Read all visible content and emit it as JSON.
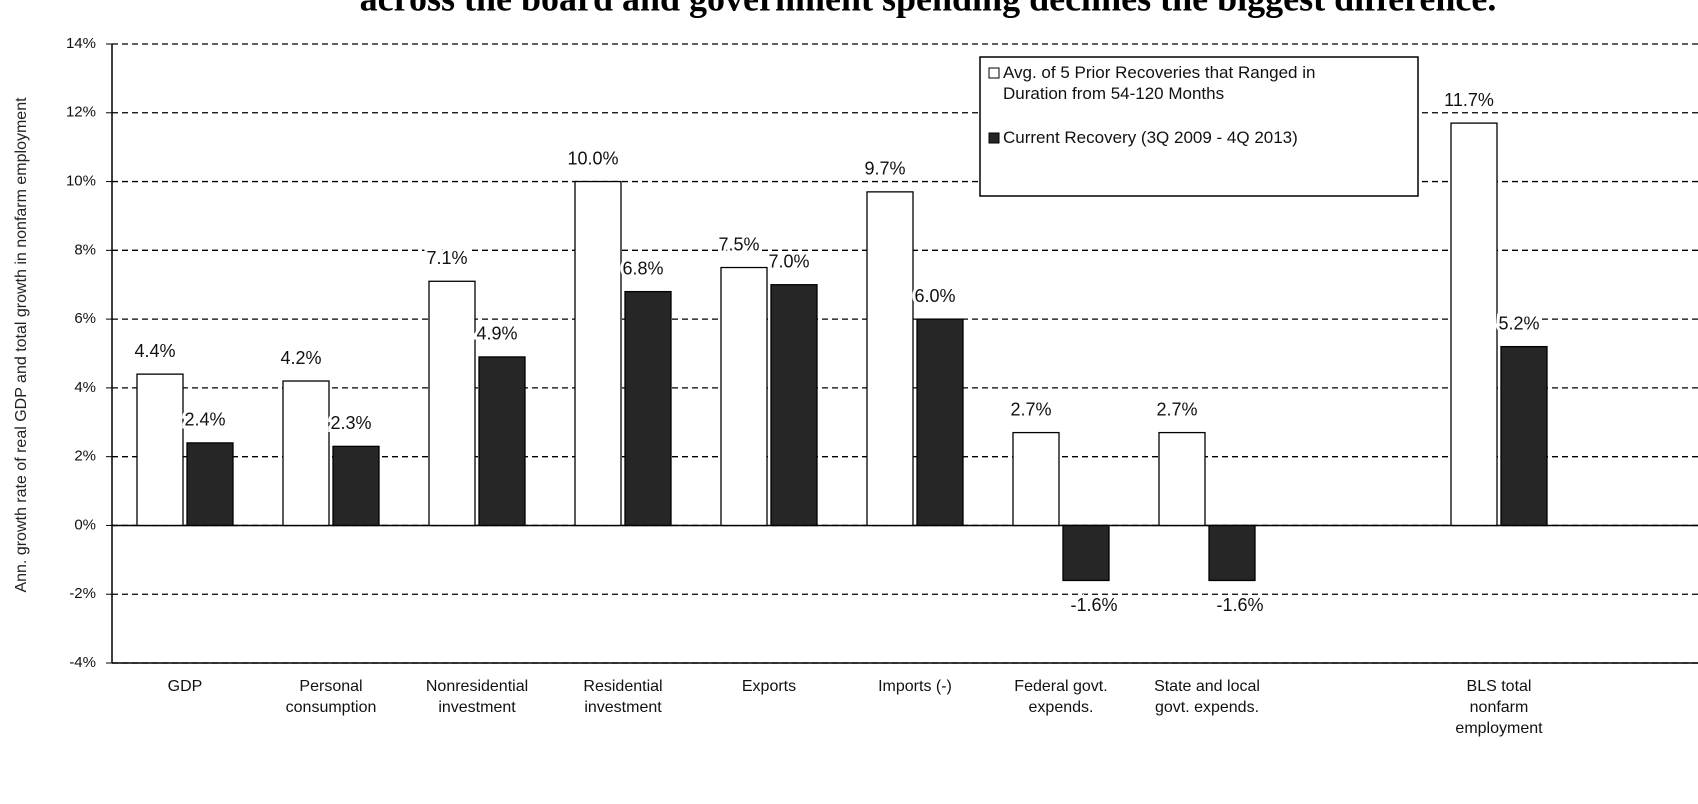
{
  "chart_data": {
    "type": "bar",
    "title": "across the board and government spending declines the biggest difference.",
    "y_label": "Ann. growth rate of real GDP and total growth in nonfarm employment",
    "categories": [
      "GDP",
      "Personal\nconsumption",
      "Nonresidential\ninvestment",
      "Residential\ninvestment",
      "Exports",
      "Imports (-)",
      "Federal govt.\nexpends.",
      "State and local\ngovt. expends.",
      null,
      "BLS total\nnonfarm\nemployment"
    ],
    "series": [
      {
        "name": "Avg. of 5 Prior Recoveries that Ranged in\nDuration from 54-120 Months",
        "color": "#ffffff",
        "values": [
          4.4,
          4.2,
          7.1,
          10.0,
          7.5,
          9.7,
          2.7,
          2.7,
          null,
          11.7
        ],
        "value_labels": [
          "4.4%",
          "4.2%",
          "7.1%",
          "10.0%",
          "7.5%",
          "9.7%",
          "2.7%",
          "2.7%",
          null,
          "11.7%"
        ]
      },
      {
        "name": "Current Recovery  (3Q 2009 - 4Q 2013)",
        "color": "#262626",
        "values": [
          2.4,
          2.3,
          4.9,
          6.8,
          7.0,
          6.0,
          -1.6,
          -1.6,
          null,
          5.2
        ],
        "value_labels": [
          "2.4%",
          "2.3%",
          "4.9%",
          "6.8%",
          "7.0%",
          "6.0%",
          "-1.6%",
          "-1.6%",
          null,
          "5.2%"
        ]
      }
    ],
    "ylim": [
      -4,
      14
    ],
    "yticks": [
      {
        "value": -4,
        "label": "-4%"
      },
      {
        "value": -2,
        "label": "-2%"
      },
      {
        "value": 0,
        "label": "0%"
      },
      {
        "value": 2,
        "label": "2%"
      },
      {
        "value": 4,
        "label": "4%"
      },
      {
        "value": 6,
        "label": "6%"
      },
      {
        "value": 8,
        "label": "8%"
      },
      {
        "value": 10,
        "label": "10%"
      },
      {
        "value": 12,
        "label": "12%"
      },
      {
        "value": 14,
        "label": "14%"
      }
    ],
    "grid": true,
    "legend": "upper right"
  }
}
